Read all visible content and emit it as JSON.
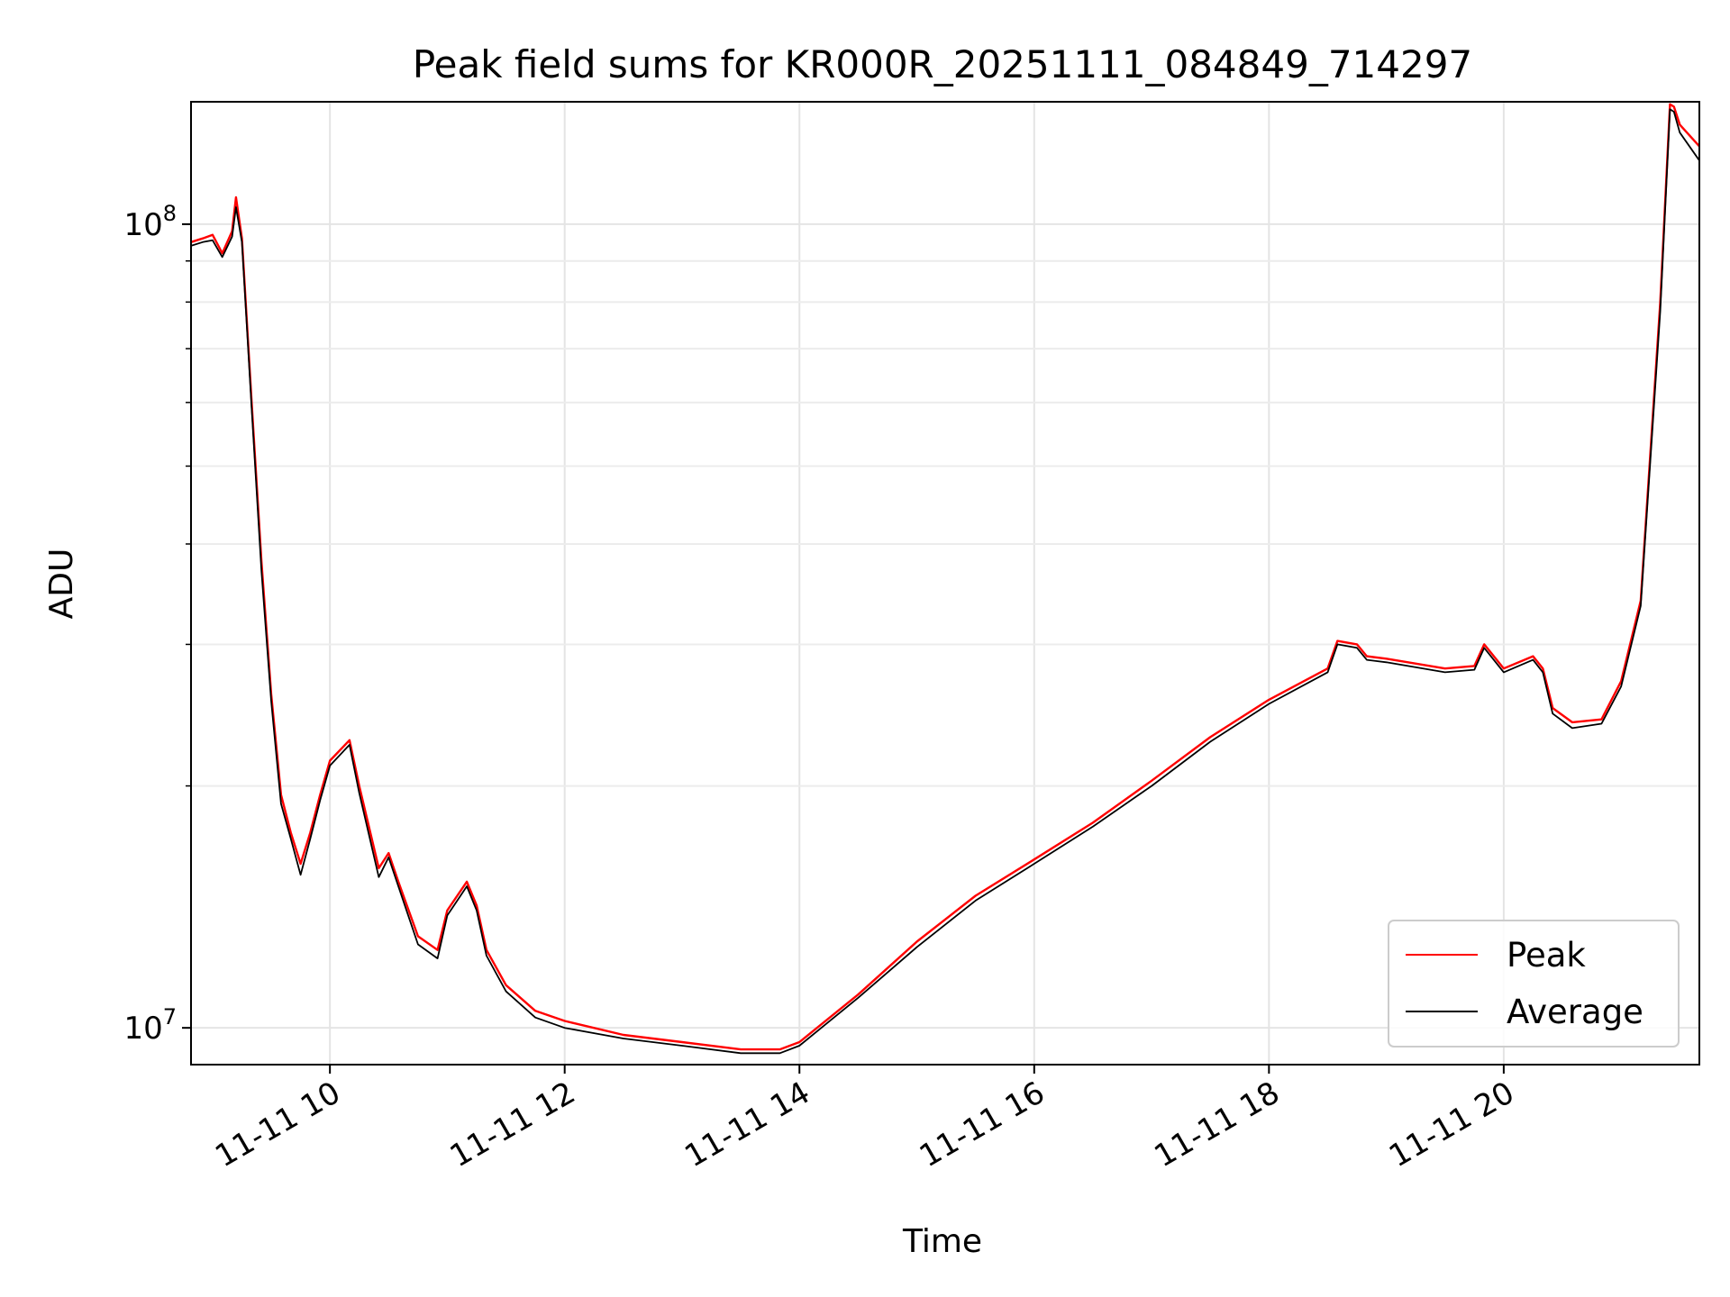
{
  "chart_data": {
    "type": "line",
    "title": "Peak field sums for KR000R_20251111_084849_714297",
    "xlabel": "Time",
    "ylabel": "ADU",
    "x_axis_kind": "datetime",
    "xlim": [
      "2025-11-11 08:49",
      "2025-11-11 21:40"
    ],
    "ylim": [
      9000000,
      142000000
    ],
    "y_scale": "log",
    "grid": true,
    "legend_position": "lower-right",
    "x_ticks": [
      {
        "value": "2025-11-11 10:00",
        "label": "11-11 10"
      },
      {
        "value": "2025-11-11 12:00",
        "label": "11-11 12"
      },
      {
        "value": "2025-11-11 14:00",
        "label": "11-11 14"
      },
      {
        "value": "2025-11-11 16:00",
        "label": "11-11 16"
      },
      {
        "value": "2025-11-11 18:00",
        "label": "11-11 18"
      },
      {
        "value": "2025-11-11 20:00",
        "label": "11-11 20"
      }
    ],
    "y_ticks": [
      {
        "value": 10000000,
        "base": "10",
        "exp": "7"
      },
      {
        "value": 100000000,
        "base": "10",
        "exp": "8"
      }
    ],
    "series": [
      {
        "name": "Peak",
        "color": "#ff0000",
        "x": [
          "2025-11-11 08:49",
          "2025-11-11 08:55",
          "2025-11-11 09:00",
          "2025-11-11 09:05",
          "2025-11-11 09:10",
          "2025-11-11 09:12",
          "2025-11-11 09:15",
          "2025-11-11 09:20",
          "2025-11-11 09:25",
          "2025-11-11 09:30",
          "2025-11-11 09:35",
          "2025-11-11 09:40",
          "2025-11-11 09:45",
          "2025-11-11 09:50",
          "2025-11-11 09:55",
          "2025-11-11 10:00",
          "2025-11-11 10:10",
          "2025-11-11 10:15",
          "2025-11-11 10:25",
          "2025-11-11 10:30",
          "2025-11-11 10:35",
          "2025-11-11 10:45",
          "2025-11-11 10:55",
          "2025-11-11 11:00",
          "2025-11-11 11:10",
          "2025-11-11 11:15",
          "2025-11-11 11:20",
          "2025-11-11 11:30",
          "2025-11-11 11:45",
          "2025-11-11 12:00",
          "2025-11-11 12:30",
          "2025-11-11 13:00",
          "2025-11-11 13:30",
          "2025-11-11 13:50",
          "2025-11-11 14:00",
          "2025-11-11 14:30",
          "2025-11-11 15:00",
          "2025-11-11 15:30",
          "2025-11-11 16:00",
          "2025-11-11 16:30",
          "2025-11-11 17:00",
          "2025-11-11 17:30",
          "2025-11-11 18:00",
          "2025-11-11 18:30",
          "2025-11-11 18:35",
          "2025-11-11 18:45",
          "2025-11-11 18:50",
          "2025-11-11 19:00",
          "2025-11-11 19:30",
          "2025-11-11 19:45",
          "2025-11-11 19:50",
          "2025-11-11 20:00",
          "2025-11-11 20:15",
          "2025-11-11 20:20",
          "2025-11-11 20:25",
          "2025-11-11 20:35",
          "2025-11-11 20:50",
          "2025-11-11 21:00",
          "2025-11-11 21:10",
          "2025-11-11 21:20",
          "2025-11-11 21:25",
          "2025-11-11 21:27",
          "2025-11-11 21:30",
          "2025-11-11 21:40"
        ],
        "y": [
          95000000,
          96000000,
          97000000,
          92000000,
          98000000,
          108000000,
          96000000,
          60000000,
          38000000,
          26000000,
          19500000,
          17500000,
          16000000,
          17500000,
          19500000,
          21500000,
          22800000,
          20000000,
          15800000,
          16500000,
          15200000,
          13000000,
          12500000,
          14000000,
          15200000,
          14200000,
          12500000,
          11300000,
          10500000,
          10200000,
          9800000,
          9600000,
          9400000,
          9400000,
          9600000,
          11000000,
          12800000,
          14600000,
          16200000,
          18000000,
          20300000,
          23000000,
          25600000,
          28000000,
          30300000,
          30000000,
          29000000,
          28800000,
          28000000,
          28200000,
          30000000,
          28000000,
          29000000,
          28000000,
          25000000,
          24000000,
          24200000,
          27000000,
          34000000,
          80000000,
          141000000,
          140000000,
          133000000,
          125000000
        ]
      },
      {
        "name": "Average",
        "color": "#000000",
        "x": [
          "2025-11-11 08:49",
          "2025-11-11 08:55",
          "2025-11-11 09:00",
          "2025-11-11 09:05",
          "2025-11-11 09:10",
          "2025-11-11 09:12",
          "2025-11-11 09:15",
          "2025-11-11 09:20",
          "2025-11-11 09:25",
          "2025-11-11 09:30",
          "2025-11-11 09:35",
          "2025-11-11 09:40",
          "2025-11-11 09:45",
          "2025-11-11 09:50",
          "2025-11-11 09:55",
          "2025-11-11 10:00",
          "2025-11-11 10:10",
          "2025-11-11 10:15",
          "2025-11-11 10:25",
          "2025-11-11 10:30",
          "2025-11-11 10:35",
          "2025-11-11 10:45",
          "2025-11-11 10:55",
          "2025-11-11 11:00",
          "2025-11-11 11:10",
          "2025-11-11 11:15",
          "2025-11-11 11:20",
          "2025-11-11 11:30",
          "2025-11-11 11:45",
          "2025-11-11 12:00",
          "2025-11-11 12:30",
          "2025-11-11 13:00",
          "2025-11-11 13:30",
          "2025-11-11 13:50",
          "2025-11-11 14:00",
          "2025-11-11 14:30",
          "2025-11-11 15:00",
          "2025-11-11 15:30",
          "2025-11-11 16:00",
          "2025-11-11 16:30",
          "2025-11-11 17:00",
          "2025-11-11 17:30",
          "2025-11-11 18:00",
          "2025-11-11 18:30",
          "2025-11-11 18:35",
          "2025-11-11 18:45",
          "2025-11-11 18:50",
          "2025-11-11 19:00",
          "2025-11-11 19:30",
          "2025-11-11 19:45",
          "2025-11-11 19:50",
          "2025-11-11 20:00",
          "2025-11-11 20:15",
          "2025-11-11 20:20",
          "2025-11-11 20:25",
          "2025-11-11 20:35",
          "2025-11-11 20:50",
          "2025-11-11 21:00",
          "2025-11-11 21:10",
          "2025-11-11 21:20",
          "2025-11-11 21:25",
          "2025-11-11 21:27",
          "2025-11-11 21:30",
          "2025-11-11 21:40"
        ],
        "y": [
          94000000,
          95000000,
          95500000,
          91000000,
          96500000,
          105000000,
          95000000,
          59000000,
          37000000,
          25500000,
          19000000,
          17200000,
          15500000,
          17200000,
          19200000,
          21200000,
          22500000,
          19600000,
          15400000,
          16300000,
          15000000,
          12700000,
          12200000,
          13800000,
          15000000,
          14000000,
          12300000,
          11100000,
          10300000,
          10000000,
          9700000,
          9500000,
          9300000,
          9300000,
          9500000,
          10900000,
          12600000,
          14400000,
          16000000,
          17800000,
          20000000,
          22700000,
          25300000,
          27700000,
          30000000,
          29700000,
          28700000,
          28500000,
          27700000,
          27900000,
          29700000,
          27700000,
          28700000,
          27700000,
          24600000,
          23600000,
          23900000,
          26600000,
          33500000,
          78000000,
          139000000,
          138000000,
          130000000,
          120000000
        ]
      }
    ]
  }
}
